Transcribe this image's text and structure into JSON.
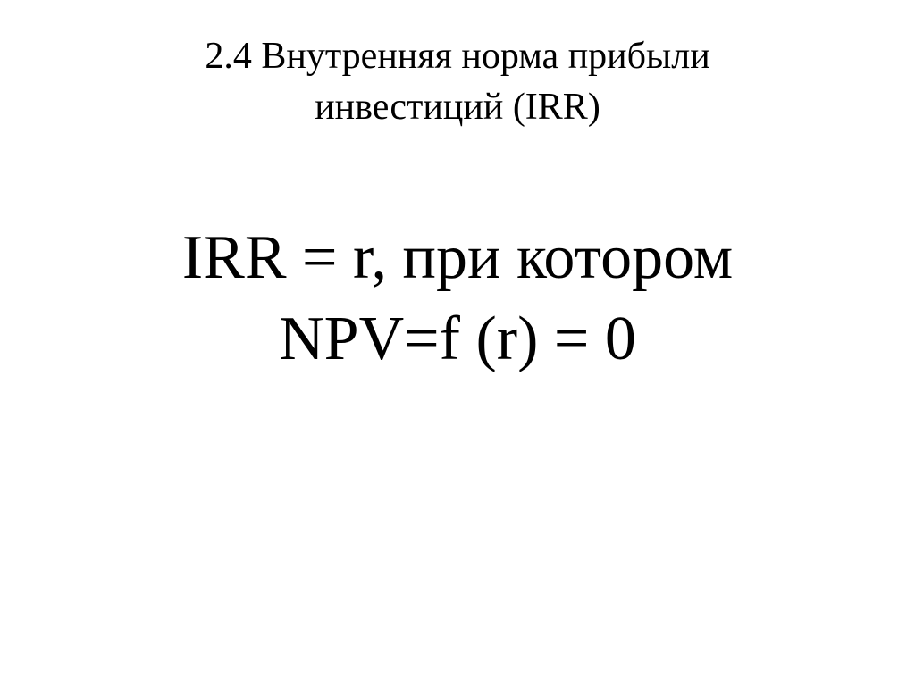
{
  "slide": {
    "title_line1": "2.4 Внутренняя норма прибыли",
    "title_line2": "инвестиций (IRR)",
    "formula_line1": "IRR = r, при котором",
    "formula_line2": "NPV=f (r) = 0",
    "title_fontsize": 42,
    "formula_fontsize": 70,
    "text_color": "#000000",
    "background_color": "#ffffff",
    "font_family": "Times New Roman"
  }
}
